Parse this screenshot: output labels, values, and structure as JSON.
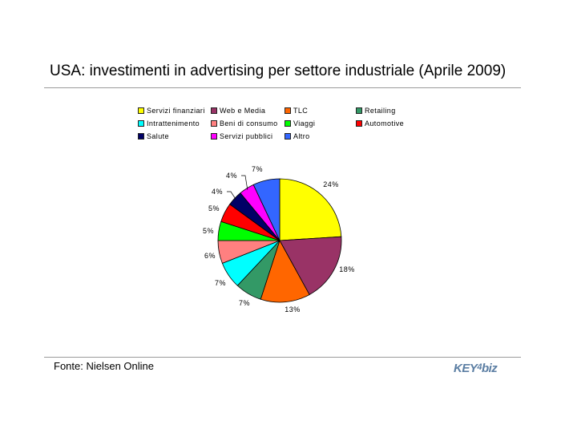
{
  "title": "USA: investimenti in advertising per settore industriale (Aprile 2009)",
  "source": "Fonte: Nielsen Online",
  "logo_text": "KEY4biz",
  "chart_data": {
    "type": "pie",
    "title": "USA: investimenti in advertising per settore industriale (Aprile 2009)",
    "legend_placement": "top",
    "slices": [
      {
        "name": "Servizi finanziari",
        "value": 24,
        "label": "24%",
        "color": "#ffff00"
      },
      {
        "name": "Web e Media",
        "value": 18,
        "label": "18%",
        "color": "#993366"
      },
      {
        "name": "TLC",
        "value": 13,
        "label": "13%",
        "color": "#ff6600"
      },
      {
        "name": "Retailing",
        "value": 7,
        "label": "7%",
        "color": "#339966"
      },
      {
        "name": "Intrattenimento",
        "value": 7,
        "label": "7%",
        "color": "#00ffff"
      },
      {
        "name": "Beni di consumo",
        "value": 6,
        "label": "6%",
        "color": "#ff8080"
      },
      {
        "name": "Viaggi",
        "value": 5,
        "label": "5%",
        "color": "#00ff00"
      },
      {
        "name": "Automotive",
        "value": 5,
        "label": "5%",
        "color": "#ff0000"
      },
      {
        "name": "Salute",
        "value": 4,
        "label": "4%",
        "color": "#000066"
      },
      {
        "name": "Servizi pubblici",
        "value": 4,
        "label": "4%",
        "color": "#ff00ff"
      },
      {
        "name": "Altro",
        "value": 7,
        "label": "7%",
        "color": "#3366ff"
      }
    ]
  }
}
